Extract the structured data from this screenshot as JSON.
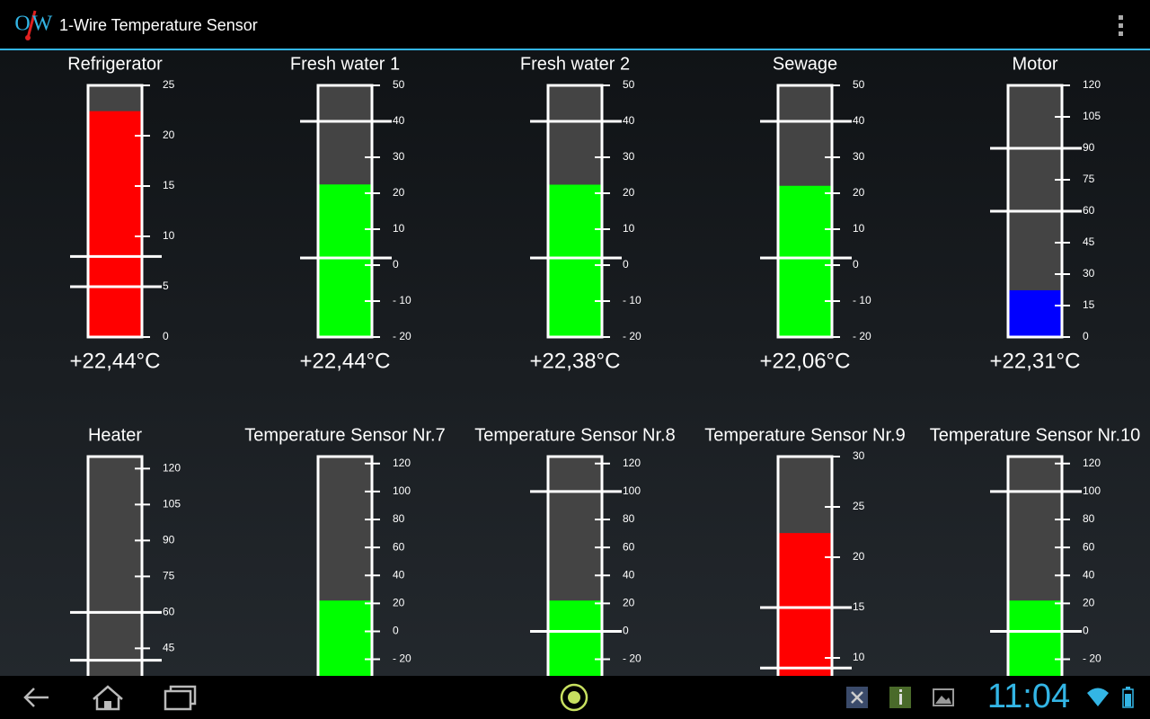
{
  "app_bar": {
    "logo_letters": [
      "O",
      "W"
    ],
    "title": "1-Wire Temperature Sensor"
  },
  "sensors": [
    {
      "name": "Refrigerator",
      "reading": "+22,44°C",
      "value": 22.44,
      "color": "#ff0000",
      "ylim": [
        0,
        25
      ],
      "yticks": [
        0,
        5,
        10,
        15,
        20,
        25
      ],
      "limits": [
        8,
        5
      ]
    },
    {
      "name": "Fresh water 1",
      "reading": "+22,44°C",
      "value": 22.44,
      "color": "#00ff00",
      "ylim": [
        -20,
        50
      ],
      "yticks": [
        {
          "value": -20,
          "label": "- 20"
        },
        {
          "value": -10,
          "label": "- 10"
        },
        0,
        10,
        20,
        30,
        40,
        50
      ],
      "limits": [
        40,
        2
      ]
    },
    {
      "name": "Fresh water 2",
      "reading": "+22,38°C",
      "value": 22.38,
      "color": "#00ff00",
      "ylim": [
        -20,
        50
      ],
      "yticks": [
        {
          "value": -20,
          "label": "- 20"
        },
        {
          "value": -10,
          "label": "- 10"
        },
        0,
        10,
        20,
        30,
        40,
        50
      ],
      "limits": [
        40,
        2
      ]
    },
    {
      "name": "Sewage",
      "reading": "+22,06°C",
      "value": 22.06,
      "color": "#00ff00",
      "ylim": [
        -20,
        50
      ],
      "yticks": [
        {
          "value": -20,
          "label": "- 20"
        },
        {
          "value": -10,
          "label": "- 10"
        },
        0,
        10,
        20,
        30,
        40,
        50
      ],
      "limits": [
        40,
        2
      ]
    },
    {
      "name": "Motor",
      "reading": "+22,31°C",
      "value": 22.31,
      "color": "#0000ff",
      "ylim": [
        0,
        120
      ],
      "yticks": [
        0,
        15,
        30,
        45,
        60,
        75,
        90,
        105,
        120
      ],
      "limits": [
        90,
        60
      ]
    },
    {
      "name": "Heater",
      "ylim": [
        20,
        125
      ],
      "yticks": [
        45,
        60,
        75,
        90,
        105,
        120
      ],
      "limits": [
        60,
        40
      ]
    },
    {
      "name": "Temperature Sensor Nr.7",
      "value": 22,
      "color": "#00ff00",
      "ylim": [
        -55,
        125
      ],
      "yticks": [
        {
          "value": -20,
          "label": "- 20"
        },
        0,
        20,
        40,
        60,
        80,
        100,
        120
      ],
      "limits": []
    },
    {
      "name": "Temperature Sensor Nr.8",
      "value": 22,
      "color": "#00ff00",
      "ylim": [
        -55,
        125
      ],
      "yticks": [
        {
          "value": -20,
          "label": "- 20"
        },
        0,
        20,
        40,
        60,
        80,
        100,
        120
      ],
      "limits": [
        100,
        0
      ]
    },
    {
      "name": "Temperature Sensor Nr.9",
      "value": 22.4,
      "color": "#ff0000",
      "ylim": [
        5,
        30
      ],
      "yticks": [
        10,
        15,
        20,
        25,
        30
      ],
      "limits": [
        15,
        9
      ]
    },
    {
      "name": "Temperature Sensor Nr.10",
      "value": 22,
      "color": "#00ff00",
      "ylim": [
        -55,
        125
      ],
      "yticks": [
        {
          "value": -20,
          "label": "- 20"
        },
        0,
        20,
        40,
        60,
        80,
        100,
        120
      ],
      "limits": [
        100,
        0
      ]
    }
  ],
  "status_bar": {
    "time": "11:04"
  }
}
